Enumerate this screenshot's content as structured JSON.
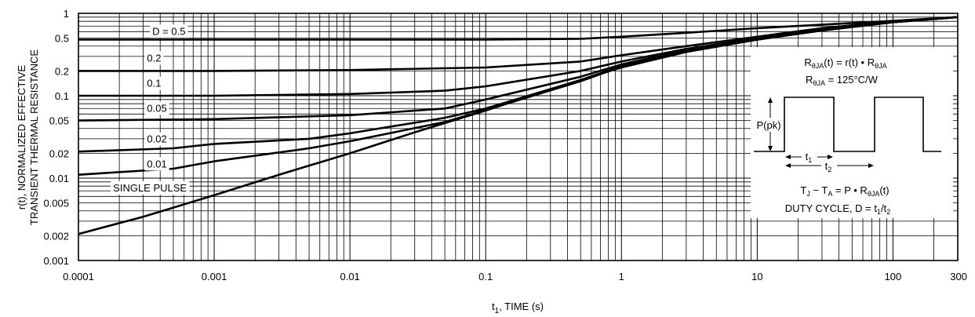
{
  "chart_data": {
    "type": "line",
    "x_scale": "log",
    "y_scale": "log",
    "xlim": [
      0.0001,
      300
    ],
    "ylim": [
      0.001,
      1
    ],
    "grid": true,
    "xlabel_main": "t",
    "xlabel_sub": "1",
    "xlabel_rest": ", TIME (s)",
    "ylabel_line1": "r(t), NORMALIZED EFFECTIVE",
    "ylabel_line2": "TRANSIENT THERMAL RESISTANCE",
    "x_ticks": [
      {
        "value": 0.0001,
        "label": "0.0001"
      },
      {
        "value": 0.001,
        "label": "0.001"
      },
      {
        "value": 0.01,
        "label": "0.01"
      },
      {
        "value": 0.1,
        "label": "0.1"
      },
      {
        "value": 1,
        "label": "1"
      },
      {
        "value": 10,
        "label": "10"
      },
      {
        "value": 100,
        "label": "100"
      },
      {
        "value": 300,
        "label": "300"
      }
    ],
    "y_ticks": [
      {
        "value": 1,
        "label": "1"
      },
      {
        "value": 0.5,
        "label": "0.5"
      },
      {
        "value": 0.2,
        "label": "0.2"
      },
      {
        "value": 0.1,
        "label": "0.1"
      },
      {
        "value": 0.05,
        "label": "0.05"
      },
      {
        "value": 0.02,
        "label": "0.02"
      },
      {
        "value": 0.01,
        "label": "0.01"
      },
      {
        "value": 0.005,
        "label": "0.005"
      },
      {
        "value": 0.002,
        "label": "0.002"
      },
      {
        "value": 0.001,
        "label": "0.001"
      }
    ],
    "series": [
      {
        "name": "D = 0.5",
        "label_at": [
          0.00035,
          0.55
        ],
        "points": [
          [
            0.0001,
            0.48
          ],
          [
            0.001,
            0.48
          ],
          [
            0.01,
            0.48
          ],
          [
            0.1,
            0.48
          ],
          [
            0.5,
            0.49
          ],
          [
            1,
            0.52
          ],
          [
            3,
            0.58
          ],
          [
            10,
            0.66
          ],
          [
            30,
            0.73
          ],
          [
            100,
            0.81
          ],
          [
            300,
            0.9
          ]
        ]
      },
      {
        "name": "0.2",
        "label_at": [
          0.00032,
          0.26
        ],
        "points": [
          [
            0.0001,
            0.2
          ],
          [
            0.001,
            0.2
          ],
          [
            0.01,
            0.205
          ],
          [
            0.1,
            0.22
          ],
          [
            0.5,
            0.26
          ],
          [
            1,
            0.31
          ],
          [
            3,
            0.4
          ],
          [
            10,
            0.52
          ],
          [
            30,
            0.66
          ],
          [
            100,
            0.8
          ],
          [
            300,
            0.9
          ]
        ]
      },
      {
        "name": "0.1",
        "label_at": [
          0.00032,
          0.128
        ],
        "points": [
          [
            0.0001,
            0.1
          ],
          [
            0.001,
            0.1
          ],
          [
            0.01,
            0.105
          ],
          [
            0.05,
            0.115
          ],
          [
            0.1,
            0.13
          ],
          [
            0.5,
            0.2
          ],
          [
            1,
            0.26
          ],
          [
            3,
            0.37
          ],
          [
            10,
            0.5
          ],
          [
            30,
            0.64
          ],
          [
            100,
            0.79
          ],
          [
            300,
            0.9
          ]
        ]
      },
      {
        "name": "0.05",
        "label_at": [
          0.00032,
          0.064
        ],
        "points": [
          [
            0.0001,
            0.05
          ],
          [
            0.001,
            0.052
          ],
          [
            0.01,
            0.058
          ],
          [
            0.05,
            0.07
          ],
          [
            0.1,
            0.09
          ],
          [
            0.5,
            0.17
          ],
          [
            1,
            0.24
          ],
          [
            3,
            0.36
          ],
          [
            10,
            0.49
          ],
          [
            30,
            0.63
          ],
          [
            100,
            0.79
          ],
          [
            300,
            0.9
          ]
        ]
      },
      {
        "name": "0.02",
        "label_at": [
          0.00032,
          0.027
        ],
        "points": [
          [
            0.0001,
            0.021
          ],
          [
            0.0005,
            0.023
          ],
          [
            0.001,
            0.026
          ],
          [
            0.005,
            0.03
          ],
          [
            0.01,
            0.035
          ],
          [
            0.05,
            0.054
          ],
          [
            0.1,
            0.07
          ],
          [
            0.5,
            0.155
          ],
          [
            1,
            0.23
          ],
          [
            3,
            0.35
          ],
          [
            10,
            0.48
          ],
          [
            30,
            0.63
          ],
          [
            100,
            0.78
          ],
          [
            300,
            0.9
          ]
        ]
      },
      {
        "name": "0.01",
        "label_at": [
          0.00032,
          0.0135
        ],
        "points": [
          [
            0.0001,
            0.011
          ],
          [
            0.0005,
            0.013
          ],
          [
            0.001,
            0.016
          ],
          [
            0.005,
            0.023
          ],
          [
            0.01,
            0.028
          ],
          [
            0.05,
            0.048
          ],
          [
            0.1,
            0.067
          ],
          [
            0.5,
            0.15
          ],
          [
            1,
            0.225
          ],
          [
            3,
            0.345
          ],
          [
            10,
            0.48
          ],
          [
            30,
            0.62
          ],
          [
            100,
            0.78
          ],
          [
            300,
            0.9
          ]
        ]
      },
      {
        "name": "SINGLE PULSE",
        "label_at": [
          0.00018,
          0.0069
        ],
        "points": [
          [
            0.0001,
            0.0021
          ],
          [
            0.0003,
            0.0034
          ],
          [
            0.001,
            0.0062
          ],
          [
            0.003,
            0.011
          ],
          [
            0.01,
            0.02
          ],
          [
            0.03,
            0.036
          ],
          [
            0.1,
            0.066
          ],
          [
            0.3,
            0.12
          ],
          [
            1,
            0.22
          ],
          [
            3,
            0.34
          ],
          [
            10,
            0.48
          ],
          [
            30,
            0.62
          ],
          [
            100,
            0.78
          ],
          [
            300,
            0.9
          ]
        ]
      }
    ]
  },
  "inset": {
    "eq1": {
      "a": "R",
      "b": "θJA",
      "c": "(t) = r(t) • R",
      "d": "θJA"
    },
    "eq2": {
      "a": "R",
      "b": "θJA",
      "c": " = 125°C/W"
    },
    "ppk": "P(pk)",
    "t1": {
      "a": "t",
      "b": "1"
    },
    "t2": {
      "a": "t",
      "b": "2"
    },
    "eq3": {
      "a": "T",
      "b": "J",
      "c": " − T",
      "d": "A",
      "e": " = P • R",
      "f": "θJA",
      "g": "(t)"
    },
    "eq4": {
      "a": "DUTY CYCLE, D = t",
      "b": "1",
      "c": "/t",
      "d": "2"
    }
  }
}
